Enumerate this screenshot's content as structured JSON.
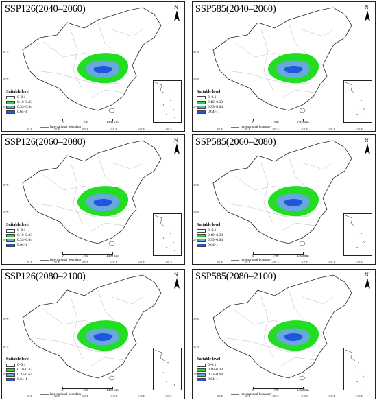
{
  "panels": [
    {
      "title": "SSP126(2040–2060)"
    },
    {
      "title": "SSP585(2040–2060)"
    },
    {
      "title": "SSP126(2060–2080)"
    },
    {
      "title": "SSP585(2060–2080)"
    },
    {
      "title": "SSP126(2080–2100)"
    },
    {
      "title": "SSP585(2080–2100)"
    }
  ],
  "north_label": "N",
  "legend": {
    "title": "Suitable level",
    "items": [
      {
        "label": "0–0.1",
        "color": "#ffffff"
      },
      {
        "label": "0.10–0.33",
        "color": "#22dd22"
      },
      {
        "label": "0.33–0.64",
        "color": "#66aadd"
      },
      {
        "label": "0.64–1",
        "color": "#2255dd"
      }
    ]
  },
  "scale": {
    "ticks": [
      "0",
      "700",
      "1400 km"
    ]
  },
  "boundary_label": "International boundary",
  "longitude_ticks": [
    "80°E",
    "90°E",
    "100°E",
    "110°E",
    "120°E",
    "130°E"
  ],
  "latitude_ticks": [
    "40°N",
    "30°N",
    "20°N"
  ]
}
